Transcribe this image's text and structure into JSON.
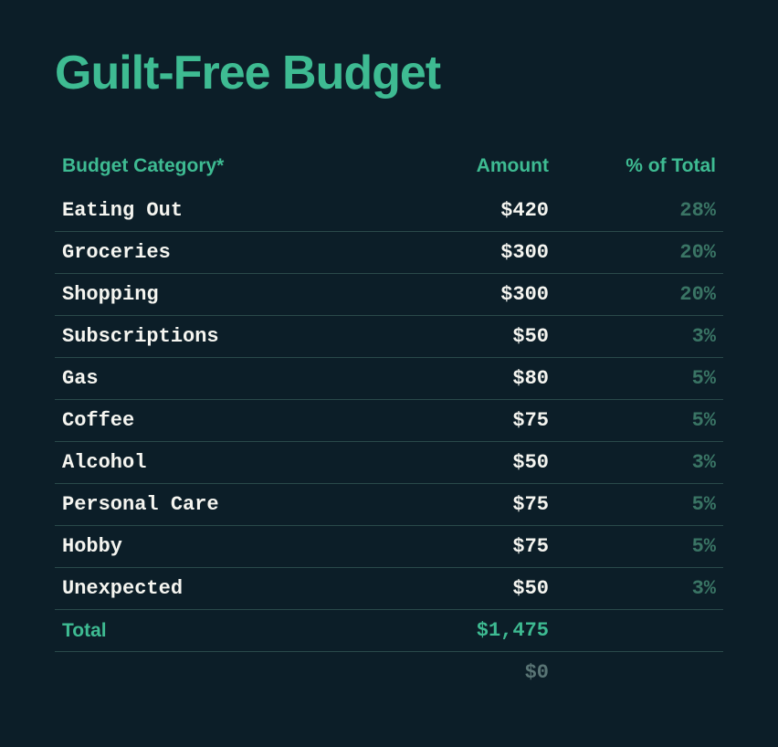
{
  "title": "Guilt-Free Budget",
  "table": {
    "type": "table",
    "columns": [
      {
        "key": "category",
        "label": "Budget Category*",
        "align": "left",
        "color": "#3ebb92"
      },
      {
        "key": "amount",
        "label": "Amount",
        "align": "right",
        "color": "#3ebb92"
      },
      {
        "key": "pct",
        "label": "% of Total",
        "align": "right",
        "color": "#3ebb92"
      }
    ],
    "rows": [
      {
        "category": "Eating Out",
        "amount": "$420",
        "pct": "28%"
      },
      {
        "category": "Groceries",
        "amount": "$300",
        "pct": "20%"
      },
      {
        "category": "Shopping",
        "amount": "$300",
        "pct": "20%"
      },
      {
        "category": "Subscriptions",
        "amount": "$50",
        "pct": "3%"
      },
      {
        "category": "Gas",
        "amount": "$80",
        "pct": "5%"
      },
      {
        "category": "Coffee",
        "amount": "$75",
        "pct": "5%"
      },
      {
        "category": "Alcohol",
        "amount": "$50",
        "pct": "3%"
      },
      {
        "category": "Personal Care",
        "amount": "$75",
        "pct": "5%"
      },
      {
        "category": "Hobby",
        "amount": "$75",
        "pct": "5%"
      },
      {
        "category": "Unexpected",
        "amount": "$50",
        "pct": "3%"
      }
    ],
    "total_row": {
      "category": "Total",
      "amount": "$1,475",
      "pct": ""
    },
    "secondary_row": {
      "category": "",
      "amount": "$0",
      "pct": ""
    },
    "styling": {
      "background_color": "#0c1e28",
      "header_color": "#3ebb92",
      "row_text_color": "#f5f5f0",
      "pct_text_color": "#3a7565",
      "total_color": "#3ebb92",
      "secondary_color": "#5a7575",
      "border_color": "#2a4a4a",
      "title_fontsize": 52,
      "header_fontsize": 21,
      "cell_fontsize": 22,
      "font_family_data": "Courier New, monospace",
      "font_family_headers": "sans-serif"
    }
  }
}
